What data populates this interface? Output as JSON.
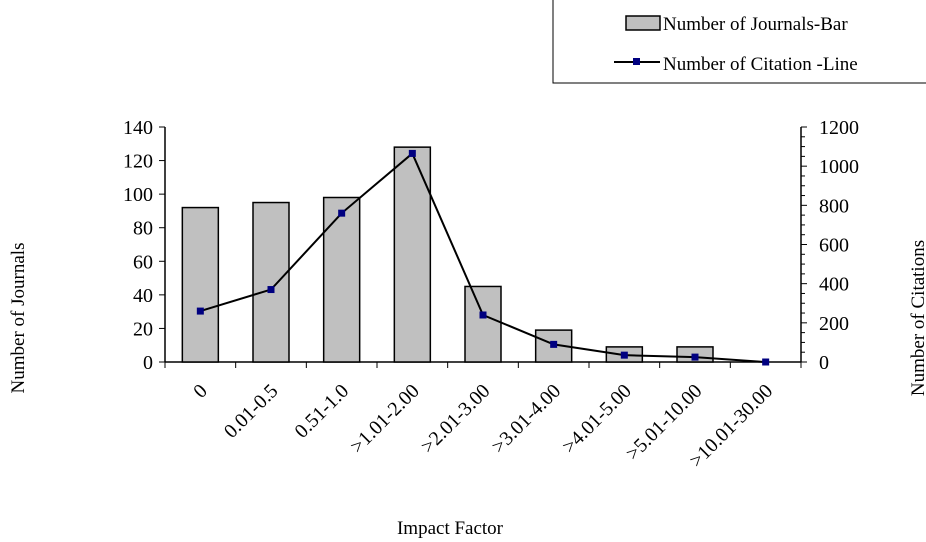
{
  "chart_data": {
    "type": "bar",
    "xlabel": "Impact Factor",
    "categories": [
      "0",
      "0.01-0.5",
      "0.51-1.0",
      ">1.01-2.00",
      ">2.01-3.00",
      ">3.01-4.00",
      ">4.01-5.00",
      ">5.01-10.00",
      ">10.01-30.00"
    ],
    "series": [
      {
        "name": "Number of Journals-Bar",
        "type": "bar",
        "axis": "left",
        "color": "#c0c0c0",
        "values": [
          92,
          95,
          98,
          128,
          45,
          19,
          9,
          9,
          0
        ]
      },
      {
        "name": "Number of Citation -Line",
        "type": "line",
        "axis": "right",
        "color": "#000080",
        "values": [
          260,
          370,
          760,
          1065,
          240,
          90,
          35,
          25,
          0
        ]
      }
    ],
    "y_left": {
      "label": "Number of Journals",
      "ylim": [
        0,
        140
      ],
      "ticks": [
        "0",
        "20",
        "40",
        "60",
        "80",
        "100",
        "120",
        "140"
      ]
    },
    "y_right": {
      "label": "Number of Citations",
      "ylim": [
        0,
        1200
      ],
      "ticks": [
        "0",
        "200",
        "400",
        "600",
        "800",
        "1000",
        "1200"
      ]
    },
    "legend_position": "top-right",
    "grid": false
  }
}
